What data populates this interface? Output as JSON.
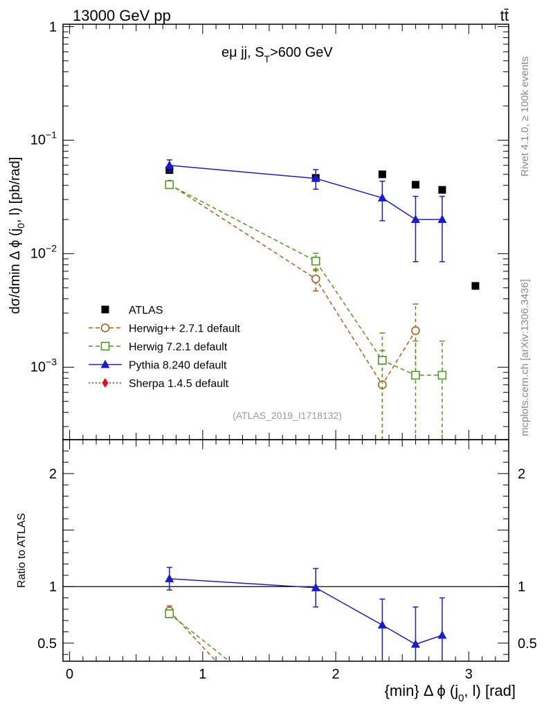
{
  "header": {
    "energy_label": "13000 GeV pp",
    "process_label": "tt̄"
  },
  "side_labels": {
    "rivet": "Rivet 4.1.0, ≥ 100k events",
    "mcplots": "mcplots.cern.ch [arXiv:1306.3436]"
  },
  "chart_data": [
    {
      "type": "scatter",
      "panel": "main",
      "title": "eμ jj, S_T>600 GeV",
      "title_main": "eμ jj, S",
      "title_sub": "T",
      "title_tail": ">600 GeV",
      "analysis_id": "(ATLAS_2019_I1718132)",
      "ylabel": "dσ/dmin Δ ϕ (j0, l) [pb/rad]",
      "ylabel_parts": [
        "dσ/dmin Δ ϕ (j",
        "0",
        ", l) [pb/rad]"
      ],
      "yscale": "log",
      "ylim": [
        0.00023,
        1.05
      ],
      "xlim": [
        -0.05,
        3.3
      ],
      "ytick_labels": [
        {
          "base": "10",
          "exp": "−3",
          "value": 0.001
        },
        {
          "base": "10",
          "exp": "−2",
          "value": 0.01
        },
        {
          "base": "10",
          "exp": "−1",
          "value": 0.1
        },
        {
          "base": "1",
          "exp": "",
          "value": 1
        }
      ],
      "legend_position": "lower-left",
      "series": [
        {
          "name": "ATLAS",
          "marker": "square",
          "color": "#000000",
          "points": [
            {
              "x": 0.75,
              "y": 0.0545
            },
            {
              "x": 1.85,
              "y": 0.0465
            },
            {
              "x": 2.35,
              "y": 0.05
            },
            {
              "x": 2.6,
              "y": 0.0405
            },
            {
              "x": 2.8,
              "y": 0.0365
            },
            {
              "x": 3.05,
              "y": 0.0052
            }
          ]
        },
        {
          "name": "Herwig++ 2.7.1 default",
          "marker": "open-circle",
          "linestyle": "dashed",
          "color": "#b05a14",
          "points": [
            {
              "x": 0.75,
              "y": 0.041,
              "ylo": 0.0385,
              "yhi": 0.0435
            },
            {
              "x": 1.85,
              "y": 0.006,
              "ylo": 0.0047,
              "yhi": 0.0073
            },
            {
              "x": 2.35,
              "y": 0.0007,
              "ylo": 0.0002,
              "yhi": 0.0014
            },
            {
              "x": 2.6,
              "y": 0.0021,
              "ylo": 0.0008,
              "yhi": 0.0036
            }
          ]
        },
        {
          "name": "Herwig 7.2.1 default",
          "marker": "open-square",
          "linestyle": "dashed",
          "color": "#4a9a1c",
          "points": [
            {
              "x": 0.75,
              "y": 0.0405,
              "ylo": 0.0385,
              "yhi": 0.0425
            },
            {
              "x": 1.85,
              "y": 0.0086,
              "ylo": 0.0071,
              "yhi": 0.0101
            },
            {
              "x": 2.35,
              "y": 0.00115,
              "ylo": 0.0002,
              "yhi": 0.002
            },
            {
              "x": 2.6,
              "y": 0.00085,
              "ylo": 0.0002,
              "yhi": 0.0017
            },
            {
              "x": 2.8,
              "y": 0.00085,
              "ylo": 0.0002,
              "yhi": 0.0017
            }
          ]
        },
        {
          "name": "Pythia 8.240 default",
          "marker": "triangle",
          "linestyle": "solid",
          "color": "#1a1ad0",
          "points": [
            {
              "x": 0.75,
              "y": 0.06,
              "ylo": 0.053,
              "yhi": 0.067
            },
            {
              "x": 1.85,
              "y": 0.046,
              "ylo": 0.037,
              "yhi": 0.055
            },
            {
              "x": 2.35,
              "y": 0.031,
              "ylo": 0.0195,
              "yhi": 0.0435
            },
            {
              "x": 2.6,
              "y": 0.02,
              "ylo": 0.0085,
              "yhi": 0.032
            },
            {
              "x": 2.8,
              "y": 0.02,
              "ylo": 0.0085,
              "yhi": 0.032
            }
          ]
        },
        {
          "name": "Sherpa 1.4.5 default",
          "marker": "diamond",
          "linestyle": "dotted",
          "color": "#e01010",
          "points": []
        }
      ]
    },
    {
      "type": "line",
      "panel": "ratio",
      "ylabel": "Ratio to ATLAS",
      "ylim": [
        0.34,
        2.3
      ],
      "xlim": [
        -0.05,
        3.3
      ],
      "xlabel": "{min} Δ ϕ (j0, l) [rad]",
      "xlabel_parts": [
        "{min} Δ ϕ (j",
        "0",
        ", l) [rad]"
      ],
      "xtick_labels": [
        "0",
        "1",
        "2",
        "3"
      ],
      "xtick_values": [
        0,
        1,
        2,
        3
      ],
      "ytick_labels": [
        "0.5",
        "1",
        "2"
      ],
      "ytick_values": [
        0.5,
        1,
        2
      ],
      "reference_line": 1,
      "series": [
        {
          "name": "Herwig++ 2.7.1 default",
          "color": "#b05a14",
          "linestyle": "dashed",
          "marker": "open-circle",
          "points": [
            {
              "x": 0.75,
              "y": 0.785,
              "ylo": 0.745,
              "yhi": 0.83
            },
            {
              "x": 1.1,
              "y": 0.34
            }
          ]
        },
        {
          "name": "Herwig 7.2.1 default",
          "color": "#4a9a1c",
          "linestyle": "dashed",
          "marker": "open-square",
          "points": [
            {
              "x": 0.75,
              "y": 0.76,
              "ylo": 0.735,
              "yhi": 0.79
            },
            {
              "x": 1.2,
              "y": 0.34
            }
          ]
        },
        {
          "name": "Pythia 8.240 default",
          "color": "#1a1ad0",
          "linestyle": "solid",
          "marker": "triangle",
          "points": [
            {
              "x": 0.75,
              "y": 1.07,
              "ylo": 0.97,
              "yhi": 1.17
            },
            {
              "x": 1.85,
              "y": 0.99,
              "ylo": 0.82,
              "yhi": 1.16
            },
            {
              "x": 2.35,
              "y": 0.66,
              "ylo": 0.34,
              "yhi": 0.89
            },
            {
              "x": 2.6,
              "y": 0.49,
              "ylo": 0.34,
              "yhi": 0.82
            },
            {
              "x": 2.8,
              "y": 0.57,
              "ylo": 0.34,
              "yhi": 0.9
            }
          ]
        }
      ]
    }
  ]
}
